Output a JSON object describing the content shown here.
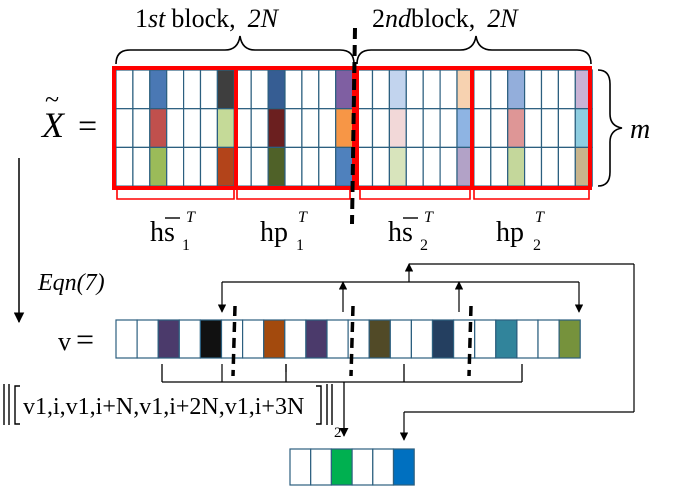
{
  "labels": {
    "block1": {
      "ordinal": "1",
      "suffix": "st",
      "word": "block,",
      "size": "2N"
    },
    "block2": {
      "ordinal": "2",
      "suffix": "nd",
      "word": "block,",
      "size": "2N"
    },
    "matrix_symbol": "X",
    "matrix_tilde": "~",
    "equals": "=",
    "m_label": "m",
    "sub_labels": [
      {
        "base": "h",
        "var": "s",
        "bar": true,
        "sub": "1",
        "sup": "T"
      },
      {
        "base": "hp",
        "var": "",
        "bar": false,
        "sub": "1",
        "sup": "T"
      },
      {
        "base": "h",
        "var": "s",
        "bar": true,
        "sub": "2",
        "sup": "T"
      },
      {
        "base": "hp",
        "var": "",
        "bar": false,
        "sub": "2",
        "sup": "T"
      }
    ],
    "eqn_ref": "Eqn(7)",
    "vector_symbol": "v",
    "norm_terms": [
      "v1,i",
      "v1,i+N",
      "v1,i+2N",
      "v1,i+3N"
    ],
    "norm_subscript": "2"
  },
  "colors": {
    "matrix_rows": [
      [
        "#ffffff",
        "#ffffff",
        "#4a78b4",
        "#ffffff",
        "#ffffff",
        "#ffffff",
        "#3e3e3e",
        "#ffffff",
        "#ffffff",
        "#365d93",
        "#ffffff",
        "#ffffff",
        "#ffffff",
        "#7f5fa2",
        "#ffffff",
        "#ffffff",
        "#c2d4ee",
        "#ffffff",
        "#ffffff",
        "#ffffff",
        "#f7d2b0",
        "#ffffff",
        "#ffffff",
        "#93aedb",
        "#ffffff",
        "#ffffff",
        "#ffffff",
        "#c9b3d5"
      ],
      [
        "#ffffff",
        "#ffffff",
        "#c0504d",
        "#ffffff",
        "#ffffff",
        "#ffffff",
        "#c5da98",
        "#ffffff",
        "#ffffff",
        "#6b1f1f",
        "#ffffff",
        "#ffffff",
        "#ffffff",
        "#f79646",
        "#ffffff",
        "#ffffff",
        "#f2d8d8",
        "#ffffff",
        "#ffffff",
        "#ffffff",
        "#8eb4e3",
        "#ffffff",
        "#ffffff",
        "#de9696",
        "#ffffff",
        "#ffffff",
        "#ffffff",
        "#8ecde0"
      ],
      [
        "#ffffff",
        "#ffffff",
        "#9bbb59",
        "#ffffff",
        "#ffffff",
        "#ffffff",
        "#b3441a",
        "#ffffff",
        "#ffffff",
        "#4f6128",
        "#ffffff",
        "#ffffff",
        "#ffffff",
        "#4f81bd",
        "#ffffff",
        "#ffffff",
        "#d8e4bc",
        "#ffffff",
        "#ffffff",
        "#ffffff",
        "#b2a2c7",
        "#ffffff",
        "#ffffff",
        "#c4d79b",
        "#ffffff",
        "#ffffff",
        "#ffffff",
        "#c8b48c"
      ]
    ],
    "vector_cells": [
      "#ffffff",
      "#ffffff",
      "#4b3a6b",
      "#ffffff",
      "#111111",
      "#ffffff",
      "#ffffff",
      "#a34a0d",
      "#ffffff",
      "#4b3a6b",
      "#ffffff",
      "#ffffff",
      "#514a27",
      "#ffffff",
      "#ffffff",
      "#243f60",
      "#ffffff",
      "#ffffff",
      "#31849b",
      "#ffffff",
      "#ffffff",
      "#76923c"
    ],
    "result_cells": [
      "#ffffff",
      "#ffffff",
      "#00b050",
      "#ffffff",
      "#ffffff",
      "#0070c0"
    ],
    "group_border": "#ff0000",
    "cell_border": "#2c5f7f"
  }
}
